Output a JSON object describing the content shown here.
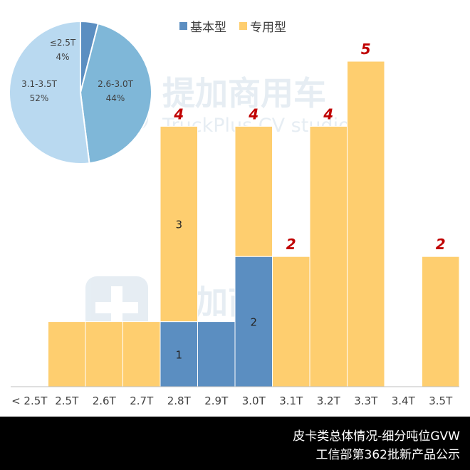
{
  "chart_data": [
    {
      "type": "bar",
      "stacked": true,
      "categories": [
        "< 2.5T",
        "2.5T",
        "2.6T",
        "2.7T",
        "2.8T",
        "2.9T",
        "3.0T",
        "3.1T",
        "3.2T",
        "3.3T",
        "3.4T",
        "3.5T"
      ],
      "series": [
        {
          "name": "基本型",
          "color": "#5b8ec1",
          "values": [
            0,
            0,
            0,
            0,
            1,
            1,
            2,
            0,
            0,
            0,
            0,
            0
          ]
        },
        {
          "name": "专用型",
          "color": "#fece6f",
          "values": [
            0,
            1,
            1,
            1,
            3,
            0,
            2,
            2,
            4,
            5,
            0,
            2
          ]
        }
      ],
      "totals": [
        0,
        1,
        1,
        1,
        4,
        1,
        4,
        2,
        4,
        5,
        0,
        2
      ],
      "total_labels": [
        "",
        "",
        "",
        "",
        "4",
        "",
        "4",
        "2",
        "4",
        "5",
        "",
        "2"
      ],
      "segment_labels": {
        "基本型": [
          "",
          "",
          "",
          "",
          "1",
          "",
          "2",
          "",
          "",
          "",
          "",
          ""
        ],
        "专用型": [
          "",
          "",
          "",
          "",
          "3",
          "",
          "",
          "",
          "",
          "",
          "",
          ""
        ]
      },
      "ylim": [
        0,
        5.4
      ],
      "legend_position": "top",
      "grid": false
    },
    {
      "type": "pie",
      "slices": [
        {
          "label": "≤2.5T",
          "percent_label": "4%",
          "value": 4,
          "color": "#5b8ec1"
        },
        {
          "label": "2.6-3.0T",
          "percent_label": "44%",
          "value": 44,
          "color": "#7fb7d8"
        },
        {
          "label": "3.1-3.5T",
          "percent_label": "52%",
          "value": 52,
          "color": "#b9d9f0"
        }
      ]
    }
  ],
  "legend": [
    {
      "label": "基本型",
      "color": "#5b8ec1"
    },
    {
      "label": "专用型",
      "color": "#fece6f"
    }
  ],
  "watermark": {
    "brand": "提加商用车",
    "subtitle": "TruckPlus CV studio"
  },
  "footer": {
    "line1": "皮卡类总体情况-细分吨位GVW",
    "line2": "工信部第362批新产品公示"
  },
  "colors": {
    "total_label": "#c00000",
    "footer_bg": "#000000",
    "axis": "#bfbfbf"
  }
}
